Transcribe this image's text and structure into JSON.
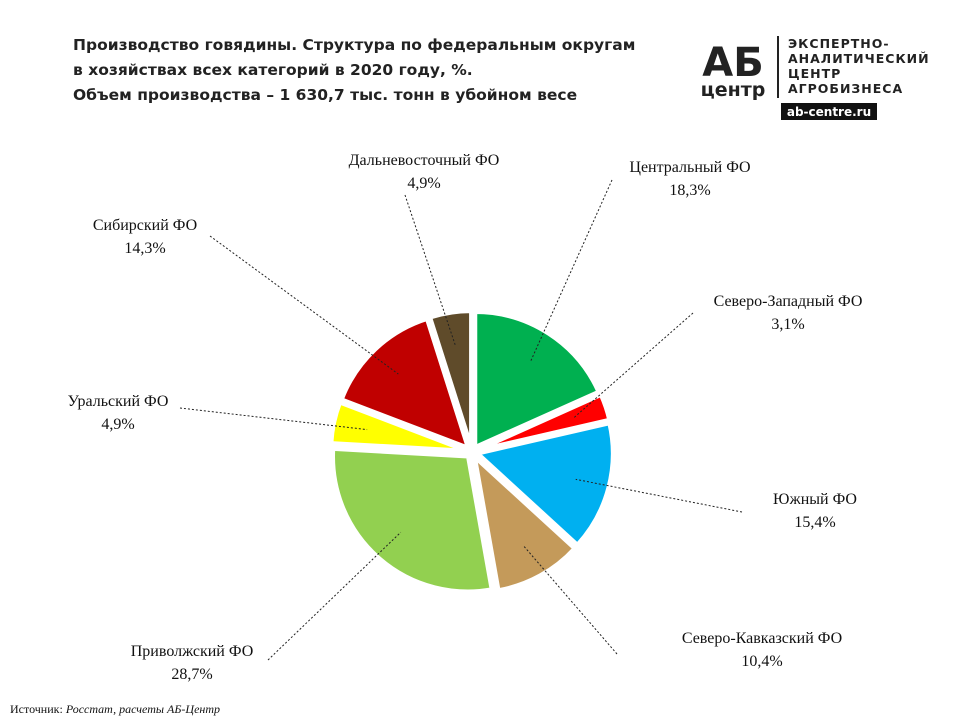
{
  "chart_data": {
    "type": "pie",
    "title": [
      "Производство  говядины.  Структура  по  федеральным  округам",
      "в хозяйствах  всех  категорий  в 2020 году,  %.",
      "Объем производства    –   1 630,7 тыс.  тонн  в убойном  весе"
    ],
    "categories": [
      "Центральный ФО",
      "Северо-Западный ФО",
      "Южный ФО",
      "Северо-Кавказский ФО",
      "Приволжский ФО",
      "Уральский ФО",
      "Сибирский ФО",
      "Дальневосточный ФО"
    ],
    "values": [
      18.3,
      3.1,
      15.4,
      10.4,
      28.7,
      4.9,
      14.3,
      4.9
    ],
    "value_labels": [
      "18,3%",
      "3,1%",
      "15,4%",
      "10,4%",
      "28,7%",
      "4,9%",
      "14,3%",
      "4,9%"
    ],
    "colors": [
      "#00b050",
      "#ff0000",
      "#00b0f0",
      "#c49a5a",
      "#92d050",
      "#ffff00",
      "#c00000",
      "#5f4b2a"
    ],
    "source_label": "Источник:",
    "source": "Росстат, расчеты АБ-Центр"
  },
  "logo": {
    "mark": "АБ",
    "mark_sub": "центр",
    "lines": [
      "ЭКСПЕРТНО-",
      "АНАЛИТИЧЕСКИЙ",
      "ЦЕНТР",
      "АГРОБИЗНЕСА"
    ],
    "site": "ab-centre.ru"
  }
}
